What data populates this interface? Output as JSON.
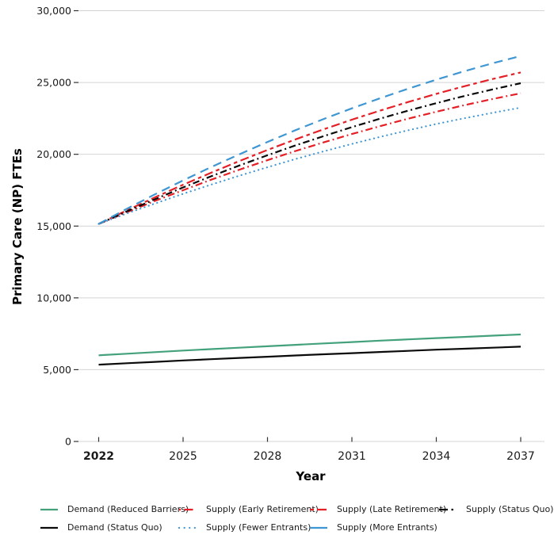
{
  "background": "#ffffff",
  "chart_data": {
    "type": "line",
    "title": "",
    "xlabel": "Year",
    "ylabel": "Primary Care (NP) FTEs",
    "xlim": [
      2022,
      2037
    ],
    "ylim": [
      0,
      30000
    ],
    "grid": "horizontal-only",
    "grid_color": "#d4d4d4",
    "tick_color": "#333333",
    "text_color": "#1a1a1a",
    "legend_position": "bottom",
    "x": [
      2022,
      2023,
      2024,
      2025,
      2026,
      2027,
      2028,
      2029,
      2030,
      2031,
      2032,
      2033,
      2034,
      2035,
      2036,
      2037
    ],
    "xticks": [
      {
        "value": 2022,
        "label": "2022",
        "bold": true
      },
      {
        "value": 2025,
        "label": "2025",
        "bold": false
      },
      {
        "value": 2028,
        "label": "2028",
        "bold": false
      },
      {
        "value": 2031,
        "label": "2031",
        "bold": false
      },
      {
        "value": 2034,
        "label": "2034",
        "bold": false
      },
      {
        "value": 2037,
        "label": "2037",
        "bold": false
      }
    ],
    "yticks": [
      {
        "value": 0,
        "label": "0"
      },
      {
        "value": 5000,
        "label": "5,000"
      },
      {
        "value": 10000,
        "label": "10,000"
      },
      {
        "value": 15000,
        "label": "15,000"
      },
      {
        "value": 20000,
        "label": "20,000"
      },
      {
        "value": 25000,
        "label": "25,000"
      },
      {
        "value": 30000,
        "label": "30,000"
      }
    ],
    "series": [
      {
        "name": "Demand (Reduced Barriers)",
        "color": "#43a17c",
        "style": "solid",
        "dash": "",
        "linecap": "butt",
        "legend_dash": "",
        "values": [
          6000,
          6110,
          6220,
          6330,
          6430,
          6530,
          6630,
          6730,
          6830,
          6920,
          7020,
          7110,
          7200,
          7280,
          7370,
          7450
        ]
      },
      {
        "name": "Supply (Early Retirement)",
        "color": "#e41f26",
        "style": "dash-dot",
        "dash": "9 4 1.8 4",
        "linecap": "butt",
        "legend_dash": "2 4.5 11 40",
        "values": [
          15150,
          15960,
          16750,
          17500,
          18230,
          18930,
          19590,
          20230,
          20830,
          21410,
          21960,
          22480,
          22960,
          23420,
          23850,
          24250
        ]
      },
      {
        "name": "Supply (Late Retirement)",
        "color": "#e41f26",
        "style": "long-dash-short-dash",
        "dash": "11 4.5 4.5 4.5",
        "linecap": "butt",
        "legend_dash": "5 4 12 40",
        "values": [
          15150,
          16090,
          17000,
          17880,
          18720,
          19530,
          20300,
          21040,
          21740,
          22410,
          23040,
          23640,
          24210,
          24740,
          25240,
          25700
        ]
      },
      {
        "name": "Supply (Status Quo)",
        "color": "#0a0a0a",
        "style": "dash-dot",
        "dash": "8.5 4 2 4",
        "linecap": "butt",
        "legend_dash": "11 4.5 2.5 40",
        "values": [
          15150,
          16030,
          16870,
          17690,
          18470,
          19220,
          19930,
          20620,
          21270,
          21890,
          22480,
          23040,
          23560,
          24060,
          24520,
          24950
        ]
      },
      {
        "name": "Demand (Status Quo)",
        "color": "#0a0a0a",
        "style": "solid",
        "dash": "",
        "linecap": "butt",
        "legend_dash": "",
        "values": [
          5350,
          5450,
          5540,
          5640,
          5730,
          5820,
          5900,
          5990,
          6070,
          6150,
          6230,
          6310,
          6390,
          6460,
          6530,
          6600
        ]
      },
      {
        "name": "Supply (Fewer Entrants)",
        "color": "#3e96d2",
        "style": "dotted",
        "dash": "0.1 5.5",
        "linecap": "round",
        "legend_dash": "0.1 6.5",
        "values": [
          15150,
          15880,
          16570,
          17250,
          17890,
          18510,
          19100,
          19670,
          20210,
          20720,
          21210,
          21670,
          22110,
          22510,
          22890,
          23250
        ]
      },
      {
        "name": "Supply (More Entrants)",
        "color": "#3e96d2",
        "style": "long-dash",
        "dash": "11 7",
        "linecap": "butt",
        "legend_dash": "",
        "values": [
          15150,
          16200,
          17210,
          18180,
          19110,
          20000,
          20860,
          21680,
          22460,
          23200,
          23900,
          24570,
          25200,
          25790,
          26340,
          26850
        ]
      }
    ]
  }
}
